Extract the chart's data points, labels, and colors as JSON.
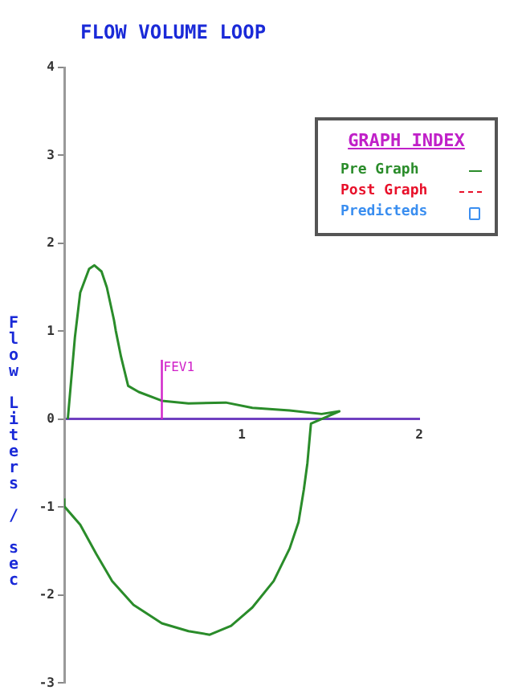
{
  "chart_data": {
    "type": "line",
    "title": "FLOW VOLUME LOOP",
    "ylabel": "Flow Liters / sec",
    "legend_title": "GRAPH INDEX",
    "legend": "top right",
    "grid": false,
    "xlim": [
      0,
      2
    ],
    "xticks": [
      1,
      2
    ],
    "ylim": [
      -3,
      4
    ],
    "yticks": [
      -3,
      -2,
      -1,
      0,
      1,
      2,
      3,
      4
    ],
    "series": [
      {
        "name": "Pre Graph",
        "color": "#2a8c2a",
        "line_style": "solid",
        "marker": "none",
        "x": [
          0.02,
          0.06,
          0.09,
          0.14,
          0.17,
          0.21,
          0.24,
          0.28,
          0.29,
          0.32,
          0.36,
          0.42,
          0.55,
          0.7,
          0.91,
          1.06,
          1.27,
          1.45,
          1.55,
          1.39,
          1.37,
          1.35,
          1.32,
          1.27,
          1.18,
          1.06,
          0.94,
          0.82,
          0.7,
          0.55,
          0.39,
          0.27,
          0.18,
          0.09,
          0,
          0
        ],
        "values": [
          0,
          0.93,
          1.44,
          1.71,
          1.75,
          1.68,
          1.5,
          1.13,
          1.01,
          0.71,
          0.38,
          0.31,
          0.21,
          0.18,
          0.19,
          0.13,
          0.1,
          0.06,
          0.09,
          -0.05,
          -0.5,
          -0.8,
          -1.17,
          -1.47,
          -1.84,
          -2.14,
          -2.35,
          -2.45,
          -2.41,
          -2.32,
          -2.11,
          -1.84,
          -1.53,
          -1.2,
          -0.99,
          -0.9
        ]
      },
      {
        "name": "Post Graph",
        "type": "line",
        "color": "#e8102a",
        "line_style": "dashed",
        "marker": "none"
      },
      {
        "name": "Predicteds",
        "type": "scatter",
        "color": "#3a8ef0",
        "marker": "square"
      }
    ],
    "ref_lines": [
      {
        "axis": "x",
        "value": 0.55,
        "label": "FEV1",
        "color": "#d020c8"
      }
    ]
  }
}
